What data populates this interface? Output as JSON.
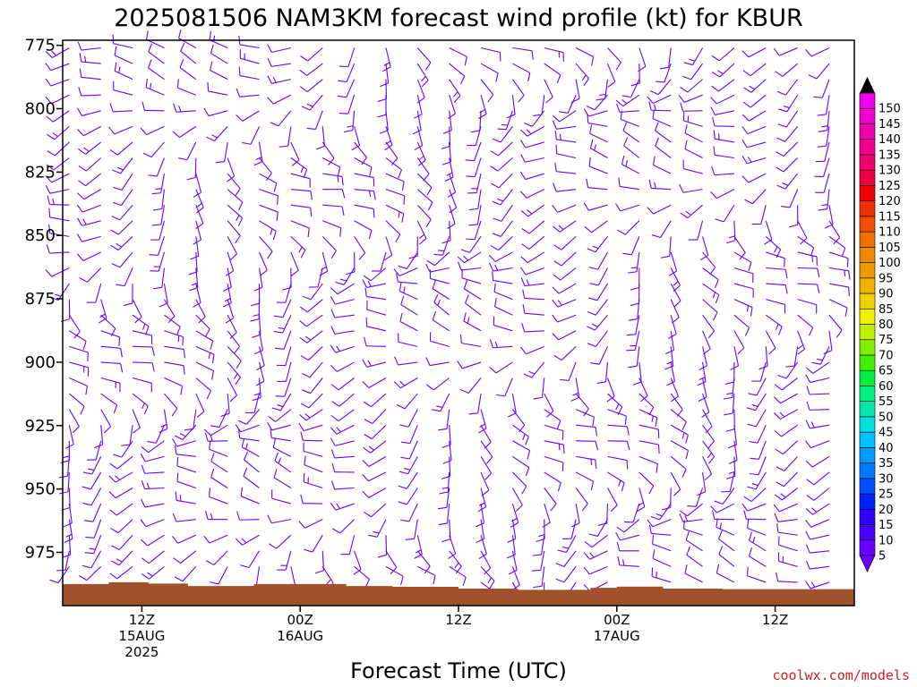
{
  "chart_data": {
    "type": "wind-barb-profile",
    "title": "2025081506 NAM3KM forecast wind profile (kt) for KBUR",
    "xlabel": "Forecast Time (UTC)",
    "ylabel": "",
    "y_ticks": [
      775,
      800,
      825,
      850,
      875,
      900,
      925,
      950,
      975
    ],
    "y_range_hpa": [
      773,
      996
    ],
    "x_range_hours": [
      0,
      60
    ],
    "x_ticks": [
      {
        "hour": 6,
        "lines": [
          "12Z",
          "15AUG",
          "2025"
        ]
      },
      {
        "hour": 18,
        "lines": [
          "00Z",
          "16AUG"
        ]
      },
      {
        "hour": 30,
        "lines": [
          "12Z"
        ]
      },
      {
        "hour": 42,
        "lines": [
          "00Z",
          "17AUG"
        ]
      },
      {
        "hour": 54,
        "lines": [
          "12Z"
        ]
      }
    ],
    "surface_pressure_hpa": {
      "hours": [
        0,
        3.5,
        6.5,
        9.5,
        14.5,
        17.5,
        21.5,
        25,
        30,
        34.5,
        38.5,
        40,
        42,
        45.5,
        50,
        53,
        60
      ],
      "values": [
        987.5,
        986.8,
        987.3,
        988.3,
        987.5,
        987.5,
        988.3,
        988.6,
        989.3,
        989.8,
        989.8,
        989.0,
        988.5,
        989.3,
        989.5,
        989.5,
        989.5
      ]
    },
    "colorbar": {
      "ticks": [
        5,
        10,
        15,
        20,
        25,
        30,
        35,
        40,
        45,
        50,
        55,
        60,
        65,
        70,
        75,
        80,
        85,
        90,
        95,
        100,
        105,
        110,
        115,
        120,
        125,
        130,
        135,
        140,
        145,
        150
      ],
      "colors": [
        "#6a00ff",
        "#4b00ff",
        "#2f00ff",
        "#0020ff",
        "#0050ff",
        "#0078ff",
        "#009cff",
        "#00c0ff",
        "#00e0e0",
        "#00e8b0",
        "#00f080",
        "#00f040",
        "#40f000",
        "#80f000",
        "#c0f000",
        "#f0f000",
        "#f0d000",
        "#f0b000",
        "#f09800",
        "#f08800",
        "#f07000",
        "#f05000",
        "#f03000",
        "#f00000",
        "#f00040",
        "#f00070",
        "#f00090",
        "#f000b0",
        "#f000d0",
        "#f000f0"
      ]
    },
    "barb_color": "#6a00ff",
    "surface_color": "#a0522d"
  },
  "credit": "coolwx.com/models"
}
